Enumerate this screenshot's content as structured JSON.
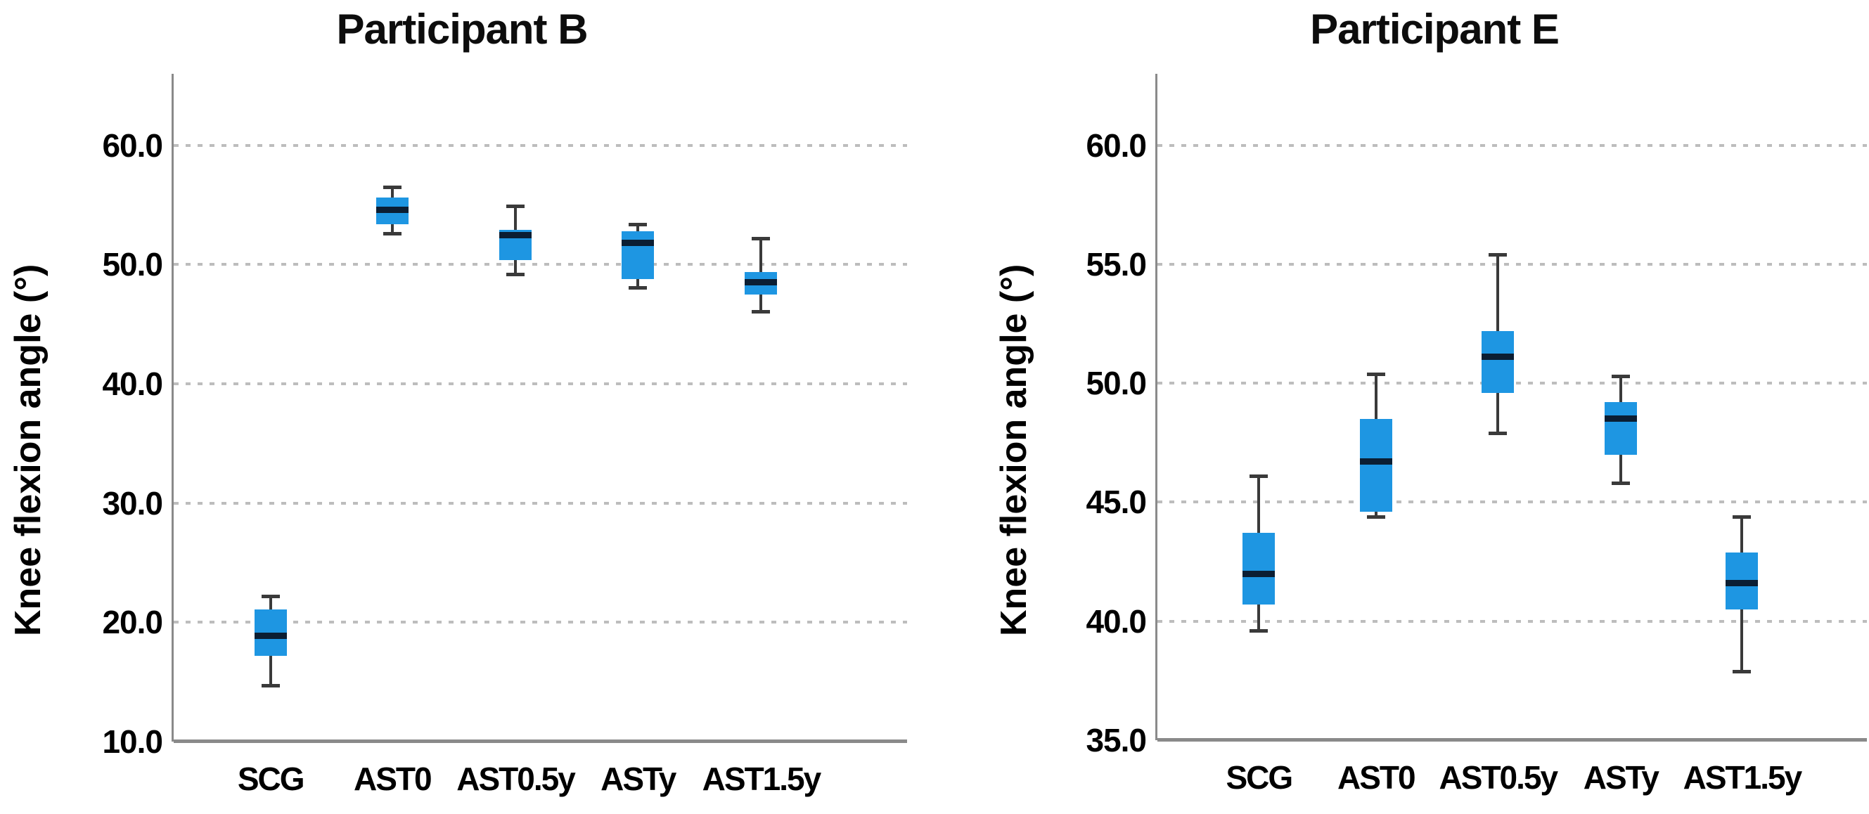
{
  "figure": {
    "background": "#FFFFFF"
  },
  "colors": {
    "box_fill": "#1E96E2",
    "median": "#0B1E33",
    "whisker": "#3A3A3A",
    "gridline": "#BDBDBD",
    "axis": "#8A8A8A",
    "text": "#000000"
  },
  "chart_data": [
    {
      "type": "box",
      "title": "Participant B",
      "xlabel": "",
      "ylabel": "Knee flexion angle (°)",
      "categories": [
        "SCG",
        "AST0",
        "AST0.5y",
        "ASTy",
        "AST1.5y"
      ],
      "ylim": [
        10,
        66
      ],
      "yticks": [
        10,
        20,
        30,
        40,
        50,
        60
      ],
      "ytick_labels": [
        "10.0",
        "20.0",
        "30.0",
        "40.0",
        "50.0",
        "60.0"
      ],
      "grid": true,
      "boxes": [
        {
          "category": "SCG",
          "whisker_low": 14.7,
          "q1": 17.2,
          "median": 18.9,
          "q3": 21.1,
          "whisker_high": 22.2
        },
        {
          "category": "AST0",
          "whisker_low": 52.6,
          "q1": 53.4,
          "median": 54.6,
          "q3": 55.6,
          "whisker_high": 56.5
        },
        {
          "category": "AST0.5y",
          "whisker_low": 49.2,
          "q1": 50.4,
          "median": 52.5,
          "q3": 52.9,
          "whisker_high": 54.9
        },
        {
          "category": "ASTy",
          "whisker_low": 48.1,
          "q1": 48.8,
          "median": 51.8,
          "q3": 52.8,
          "whisker_high": 53.4
        },
        {
          "category": "AST1.5y",
          "whisker_low": 46.1,
          "q1": 47.5,
          "median": 48.5,
          "q3": 49.4,
          "whisker_high": 52.2
        }
      ]
    },
    {
      "type": "box",
      "title": "Participant E",
      "xlabel": "",
      "ylabel": "Knee flexion angle (°)",
      "categories": [
        "SCG",
        "AST0",
        "AST0.5y",
        "ASTy",
        "AST1.5y"
      ],
      "ylim": [
        35,
        63
      ],
      "yticks": [
        35,
        40,
        45,
        50,
        55,
        60
      ],
      "ytick_labels": [
        "35.0",
        "40.0",
        "45.0",
        "50.0",
        "55.0",
        "60.0"
      ],
      "grid": true,
      "boxes": [
        {
          "category": "SCG",
          "whisker_low": 39.6,
          "q1": 40.7,
          "median": 42.0,
          "q3": 43.7,
          "whisker_high": 46.1
        },
        {
          "category": "AST0",
          "whisker_low": 44.4,
          "q1": 44.6,
          "median": 46.7,
          "q3": 48.5,
          "whisker_high": 50.4
        },
        {
          "category": "AST0.5y",
          "whisker_low": 47.9,
          "q1": 49.6,
          "median": 51.1,
          "q3": 52.2,
          "whisker_high": 55.4
        },
        {
          "category": "ASTy",
          "whisker_low": 45.8,
          "q1": 47.0,
          "median": 48.5,
          "q3": 49.2,
          "whisker_high": 50.3
        },
        {
          "category": "AST1.5y",
          "whisker_low": 37.9,
          "q1": 40.5,
          "median": 41.6,
          "q3": 42.9,
          "whisker_high": 44.4
        }
      ]
    }
  ]
}
